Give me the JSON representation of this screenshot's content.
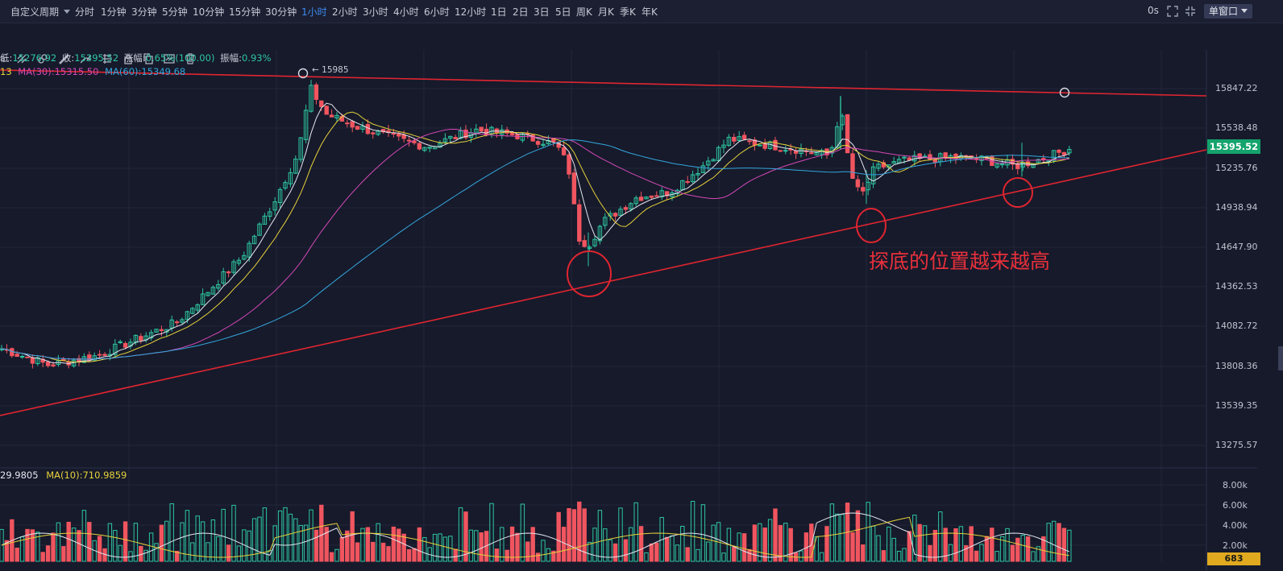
{
  "toolbar": {
    "custom_period": "自定义周期",
    "timeframes": [
      "分时",
      "1分钟",
      "3分钟",
      "5分钟",
      "10分钟",
      "15分钟",
      "30分钟",
      "1小时",
      "2小时",
      "3小时",
      "4小时",
      "6小时",
      "12小时",
      "1日",
      "2日",
      "3日",
      "5日",
      "周K",
      "月K",
      "季K",
      "年K"
    ],
    "active_timeframe": "1小时",
    "countdown": "0s",
    "window_mode": "单窗口"
  },
  "info": {
    "low_label": "低:",
    "low": "15276.92",
    "close_label": "收:",
    "close": "15395.52",
    "change_label": "涨幅:",
    "change": "0.65%(100.00)",
    "amplitude_label": "振幅:",
    "amplitude": "0.93%",
    "ma_prefix": "13",
    "ma30": "MA(30):15315.50",
    "ma60": "MA(60):15349.68",
    "vol_ma5": "29.9805",
    "vol_ma10": "MA(10):710.9859"
  },
  "chart_data": {
    "type": "candlestick",
    "price_axis_labels": [
      "15847.22",
      "15538.48",
      "15235.76",
      "14938.94",
      "14647.90",
      "14362.53",
      "14082.72",
      "13808.36",
      "13539.35",
      "13275.57"
    ],
    "current_price": "15395.52",
    "high_marker": "15985",
    "volume_axis_labels": [
      "8.00k",
      "6.00k",
      "4.00k",
      "2.00k"
    ],
    "current_volume": "683",
    "annotation": "探底的位置越来越高",
    "colors": {
      "up": "#2ec6a0",
      "down": "#f0555f",
      "ma5": "#e4e6ee",
      "ma10": "#e6d13a",
      "ma30": "#d548b6",
      "ma60": "#35a6dd",
      "trendline": "#e02530"
    },
    "ylim": [
      13200,
      16050
    ],
    "key_points": [
      {
        "label": "high",
        "price": 15985
      },
      {
        "label": "low-1",
        "price": 14480
      },
      {
        "label": "low-2",
        "price": 14960
      },
      {
        "label": "low-3",
        "price": 15180
      }
    ]
  }
}
